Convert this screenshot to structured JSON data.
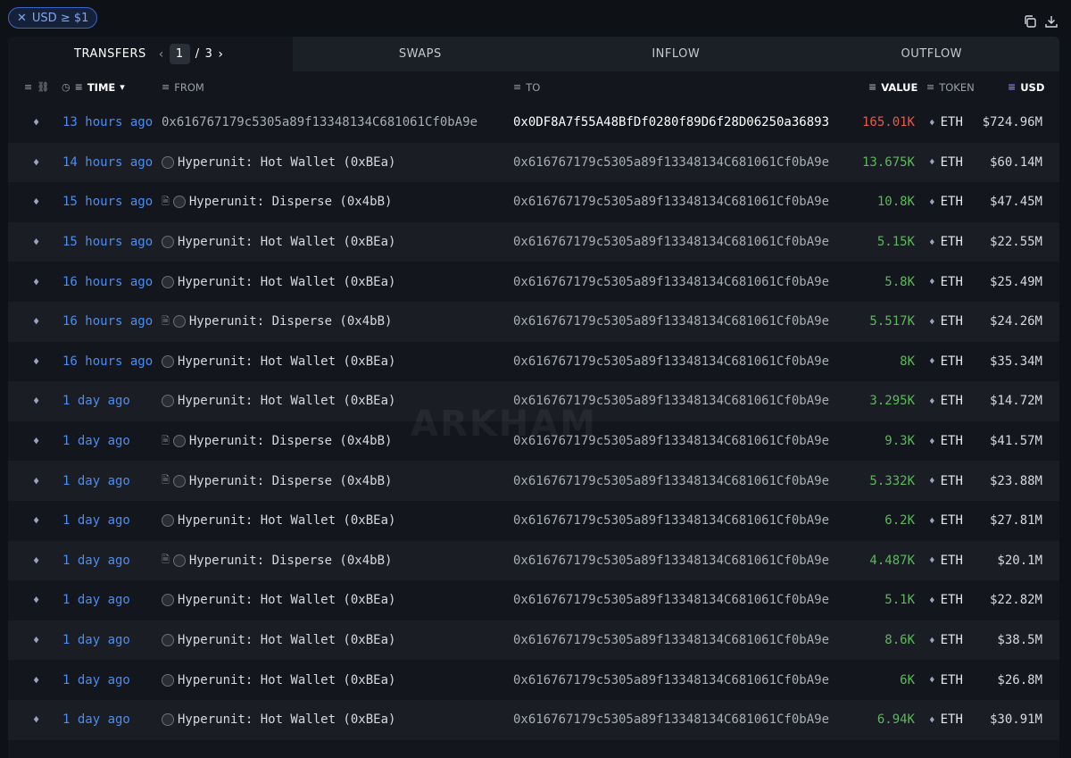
{
  "filter": {
    "chip_label": "USD ≥ $1",
    "close_glyph": "✕"
  },
  "tabs": [
    {
      "label": "TRANSFERS"
    },
    {
      "label": "SWAPS"
    },
    {
      "label": "INFLOW"
    },
    {
      "label": "OUTFLOW"
    }
  ],
  "pager": {
    "current": "1",
    "separator": "/",
    "total": "3"
  },
  "columns": {
    "time": "TIME",
    "from": "FROM",
    "to": "TO",
    "value": "VALUE",
    "token": "TOKEN",
    "usd": "USD"
  },
  "watermark": "ARKHAM",
  "colors": {
    "accent": "#4b8df0",
    "positive": "#5cb85c",
    "negative": "#e25c4e",
    "usd_sort": "#8b7cff"
  },
  "rows": [
    {
      "time": "13 hours ago",
      "from": "0x616767179c5305a89f13348134C681061Cf0bA9e",
      "from_type": "address",
      "to": "0x0DF8A7f55A48BfDf0280f89D6f28D06250a36893",
      "value": "165.01K",
      "value_dir": "neg",
      "token": "ETH",
      "usd": "$724.96M"
    },
    {
      "time": "14 hours ago",
      "from": "Hyperunit: Hot Wallet (0xBEa)",
      "from_type": "entity",
      "to": "0x616767179c5305a89f13348134C681061Cf0bA9e",
      "value": "13.675K",
      "value_dir": "pos",
      "token": "ETH",
      "usd": "$60.14M"
    },
    {
      "time": "15 hours ago",
      "from": "Hyperunit: Disperse (0x4bB)",
      "from_type": "contract",
      "to": "0x616767179c5305a89f13348134C681061Cf0bA9e",
      "value": "10.8K",
      "value_dir": "pos",
      "token": "ETH",
      "usd": "$47.45M"
    },
    {
      "time": "15 hours ago",
      "from": "Hyperunit: Hot Wallet (0xBEa)",
      "from_type": "entity",
      "to": "0x616767179c5305a89f13348134C681061Cf0bA9e",
      "value": "5.15K",
      "value_dir": "pos",
      "token": "ETH",
      "usd": "$22.55M"
    },
    {
      "time": "16 hours ago",
      "from": "Hyperunit: Hot Wallet (0xBEa)",
      "from_type": "entity",
      "to": "0x616767179c5305a89f13348134C681061Cf0bA9e",
      "value": "5.8K",
      "value_dir": "pos",
      "token": "ETH",
      "usd": "$25.49M"
    },
    {
      "time": "16 hours ago",
      "from": "Hyperunit: Disperse (0x4bB)",
      "from_type": "contract",
      "to": "0x616767179c5305a89f13348134C681061Cf0bA9e",
      "value": "5.517K",
      "value_dir": "pos",
      "token": "ETH",
      "usd": "$24.26M"
    },
    {
      "time": "16 hours ago",
      "from": "Hyperunit: Hot Wallet (0xBEa)",
      "from_type": "entity",
      "to": "0x616767179c5305a89f13348134C681061Cf0bA9e",
      "value": "8K",
      "value_dir": "pos",
      "token": "ETH",
      "usd": "$35.34M"
    },
    {
      "time": "1 day ago",
      "from": "Hyperunit: Hot Wallet (0xBEa)",
      "from_type": "entity",
      "to": "0x616767179c5305a89f13348134C681061Cf0bA9e",
      "value": "3.295K",
      "value_dir": "pos",
      "token": "ETH",
      "usd": "$14.72M"
    },
    {
      "time": "1 day ago",
      "from": "Hyperunit: Disperse (0x4bB)",
      "from_type": "contract",
      "to": "0x616767179c5305a89f13348134C681061Cf0bA9e",
      "value": "9.3K",
      "value_dir": "pos",
      "token": "ETH",
      "usd": "$41.57M"
    },
    {
      "time": "1 day ago",
      "from": "Hyperunit: Disperse (0x4bB)",
      "from_type": "contract",
      "to": "0x616767179c5305a89f13348134C681061Cf0bA9e",
      "value": "5.332K",
      "value_dir": "pos",
      "token": "ETH",
      "usd": "$23.88M"
    },
    {
      "time": "1 day ago",
      "from": "Hyperunit: Hot Wallet (0xBEa)",
      "from_type": "entity",
      "to": "0x616767179c5305a89f13348134C681061Cf0bA9e",
      "value": "6.2K",
      "value_dir": "pos",
      "token": "ETH",
      "usd": "$27.81M"
    },
    {
      "time": "1 day ago",
      "from": "Hyperunit: Disperse (0x4bB)",
      "from_type": "contract",
      "to": "0x616767179c5305a89f13348134C681061Cf0bA9e",
      "value": "4.487K",
      "value_dir": "pos",
      "token": "ETH",
      "usd": "$20.1M"
    },
    {
      "time": "1 day ago",
      "from": "Hyperunit: Hot Wallet (0xBEa)",
      "from_type": "entity",
      "to": "0x616767179c5305a89f13348134C681061Cf0bA9e",
      "value": "5.1K",
      "value_dir": "pos",
      "token": "ETH",
      "usd": "$22.82M"
    },
    {
      "time": "1 day ago",
      "from": "Hyperunit: Hot Wallet (0xBEa)",
      "from_type": "entity",
      "to": "0x616767179c5305a89f13348134C681061Cf0bA9e",
      "value": "8.6K",
      "value_dir": "pos",
      "token": "ETH",
      "usd": "$38.5M"
    },
    {
      "time": "1 day ago",
      "from": "Hyperunit: Hot Wallet (0xBEa)",
      "from_type": "entity",
      "to": "0x616767179c5305a89f13348134C681061Cf0bA9e",
      "value": "6K",
      "value_dir": "pos",
      "token": "ETH",
      "usd": "$26.8M"
    },
    {
      "time": "1 day ago",
      "from": "Hyperunit: Hot Wallet (0xBEa)",
      "from_type": "entity",
      "to": "0x616767179c5305a89f13348134C681061Cf0bA9e",
      "value": "6.94K",
      "value_dir": "pos",
      "token": "ETH",
      "usd": "$30.91M"
    }
  ]
}
